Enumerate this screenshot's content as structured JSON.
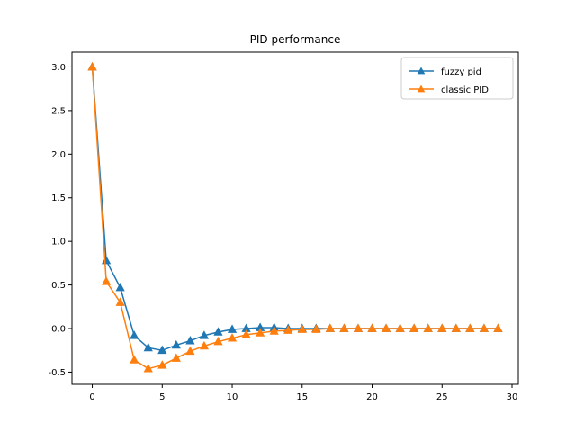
{
  "chart_data": {
    "type": "line",
    "title": "PID performance",
    "xlabel": "",
    "ylabel": "",
    "xlim": [
      -1.45,
      30.45
    ],
    "ylim": [
      -0.64,
      3.17
    ],
    "x_ticks": [
      0,
      5,
      10,
      15,
      20,
      25,
      30
    ],
    "y_ticks": [
      -0.5,
      0.0,
      0.5,
      1.0,
      1.5,
      2.0,
      2.5,
      3.0
    ],
    "grid": false,
    "legend_position": "top-right",
    "x": [
      0,
      1,
      2,
      3,
      4,
      5,
      6,
      7,
      8,
      9,
      10,
      11,
      12,
      13,
      14,
      15,
      16,
      17,
      18,
      19,
      20,
      21,
      22,
      23,
      24,
      25,
      26,
      27,
      28,
      29
    ],
    "series": [
      {
        "name": "fuzzy pid",
        "color": "#1f77b4",
        "marker": "triangle",
        "values": [
          3.0,
          0.78,
          0.47,
          -0.08,
          -0.22,
          -0.25,
          -0.19,
          -0.14,
          -0.08,
          -0.04,
          -0.01,
          0.0,
          0.01,
          0.01,
          0.0,
          0.0,
          0.0,
          0.0,
          0.0,
          0.0,
          0.0,
          0.0,
          0.0,
          0.0,
          0.0,
          0.0,
          0.0,
          0.0,
          0.0,
          0.0
        ]
      },
      {
        "name": "classic PID",
        "color": "#ff7f0e",
        "marker": "triangle",
        "values": [
          3.0,
          0.54,
          0.3,
          -0.36,
          -0.46,
          -0.42,
          -0.34,
          -0.26,
          -0.2,
          -0.15,
          -0.11,
          -0.07,
          -0.05,
          -0.03,
          -0.02,
          -0.01,
          -0.01,
          0.0,
          0.0,
          0.0,
          0.0,
          0.0,
          0.0,
          0.0,
          0.0,
          0.0,
          0.0,
          0.0,
          0.0,
          0.0
        ]
      }
    ]
  }
}
